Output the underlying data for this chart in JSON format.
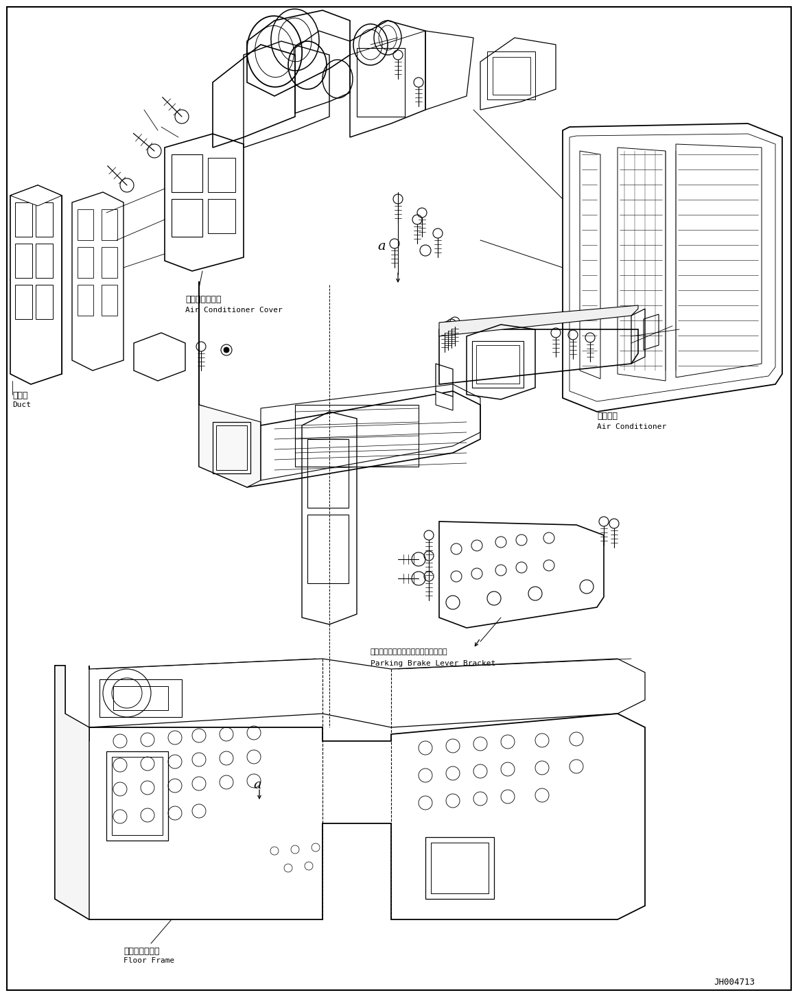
{
  "figure_width": 11.63,
  "figure_height": 14.53,
  "dpi": 100,
  "background_color": "#ffffff",
  "border_color": "#000000",
  "border_linewidth": 1.5,
  "doc_number": "JH004713",
  "labels": {
    "air_cond_cover_jp": "エアコンカバー",
    "air_cond_cover_en": "Air Conditioner Cover",
    "air_cond_jp": "エアコン",
    "air_cond_en": "Air Conditioner",
    "duct_jp": "ダクト",
    "duct_en": "Duct",
    "parking_jp": "パーキングブレーキレバーブラケット",
    "parking_en": "Parking Brake Lever Bracket",
    "floor_jp": "フロアフレーム",
    "floor_en": "Floor Frame"
  }
}
